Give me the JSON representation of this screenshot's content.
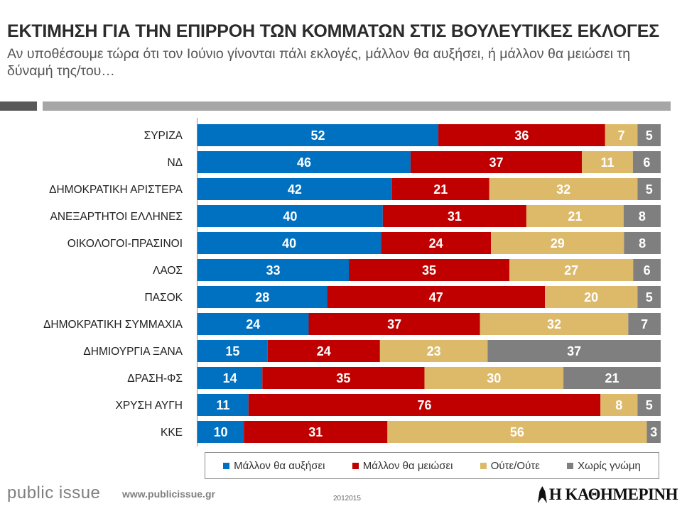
{
  "header": {
    "title": "ΕΚΤΙΜΗΣΗ ΓΙΑ ΤΗΝ ΕΠΙΡΡΟΗ ΤΩΝ ΚΟΜΜΑΤΩΝ ΣΤΙΣ ΒΟΥΛΕΥΤΙΚΕΣ ΕΚΛΟΓΕΣ",
    "subtitle": "Αν υποθέσουμε τώρα ότι τον Ιούνιο γίνονται πάλι εκλογές, μάλλον θα αυξήσει, ή μάλλον θα μειώσει τη δύναμή της/του…"
  },
  "chart_data": {
    "type": "bar",
    "orientation": "horizontal",
    "stacked": true,
    "categories": [
      "ΣΥΡΙΖΑ",
      "ΝΔ",
      "ΔΗΜΟΚΡΑΤΙΚΗ ΑΡΙΣΤΕΡΑ",
      "ΑΝΕΞΑΡΤΗΤΟΙ ΕΛΛΗΝΕΣ",
      "ΟΙΚΟΛΟΓΟΙ-ΠΡΑΣΙΝΟΙ",
      "ΛΑΟΣ",
      "ΠΑΣΟΚ",
      "ΔΗΜΟΚΡΑΤΙΚΗ ΣΥΜΜΑΧΙΑ",
      "ΔΗΜΙΟΥΡΓΙΑ ΞΑΝΑ",
      "ΔΡΑΣΗ-ΦΣ",
      "ΧΡΥΣΗ ΑΥΓΗ",
      "ΚΚΕ"
    ],
    "series": [
      {
        "name": "Μάλλον θα αυξήσει",
        "color": "#0070c0",
        "values": [
          52,
          46,
          42,
          40,
          40,
          33,
          28,
          24,
          15,
          14,
          11,
          10
        ]
      },
      {
        "name": "Μάλλον θα μειώσει",
        "color": "#c00000",
        "values": [
          36,
          37,
          21,
          31,
          24,
          35,
          47,
          37,
          24,
          35,
          76,
          31
        ]
      },
      {
        "name": "Ούτε/Ούτε",
        "color": "#ddb96a",
        "values": [
          7,
          11,
          32,
          21,
          29,
          27,
          20,
          32,
          23,
          30,
          8,
          56
        ]
      },
      {
        "name": "Χωρίς γνώμη",
        "color": "#7f7f7f",
        "values": [
          5,
          6,
          5,
          8,
          8,
          6,
          5,
          7,
          37,
          21,
          5,
          3
        ]
      }
    ],
    "legend_position": "bottom",
    "grid": false
  },
  "footer": {
    "brand": "public issue",
    "url": "www.publicissue.gr",
    "code": "2012015",
    "logo_text": "Η ΚΑΘΗΜΕΡΙΝΗ"
  }
}
